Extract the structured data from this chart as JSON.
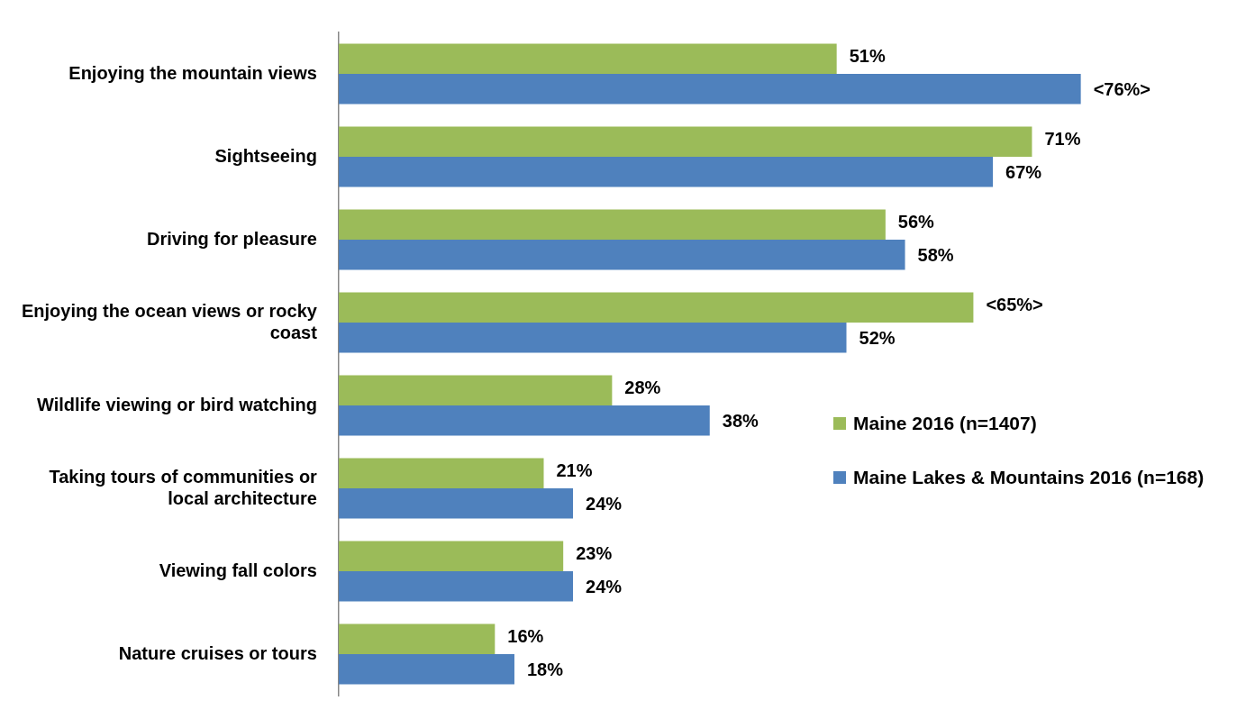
{
  "chart_data": {
    "type": "bar",
    "orientation": "horizontal",
    "categories": [
      "Enjoying the mountain views",
      "Sightseeing",
      "Driving for pleasure",
      "Enjoying the ocean views or rocky coast",
      "Wildlife viewing or bird watching",
      "Taking tours of communities or local architecture",
      "Viewing fall colors",
      "Nature cruises or tours"
    ],
    "series": [
      {
        "name": "Maine 2016 (n=1407)",
        "color": "#9bbb59",
        "values": [
          51,
          71,
          56,
          65,
          28,
          21,
          23,
          16
        ],
        "value_labels": [
          "51%",
          "71%",
          "56%",
          "<65%>",
          "28%",
          "21%",
          "23%",
          "16%"
        ]
      },
      {
        "name": "Maine Lakes & Mountains 2016 (n=168)",
        "color": "#4f81bd",
        "values": [
          76,
          67,
          58,
          52,
          38,
          24,
          24,
          18
        ],
        "value_labels": [
          "<76%>",
          "67%",
          "58%",
          "52%",
          "38%",
          "24%",
          "24%",
          "18%"
        ]
      }
    ],
    "legend": "right"
  }
}
